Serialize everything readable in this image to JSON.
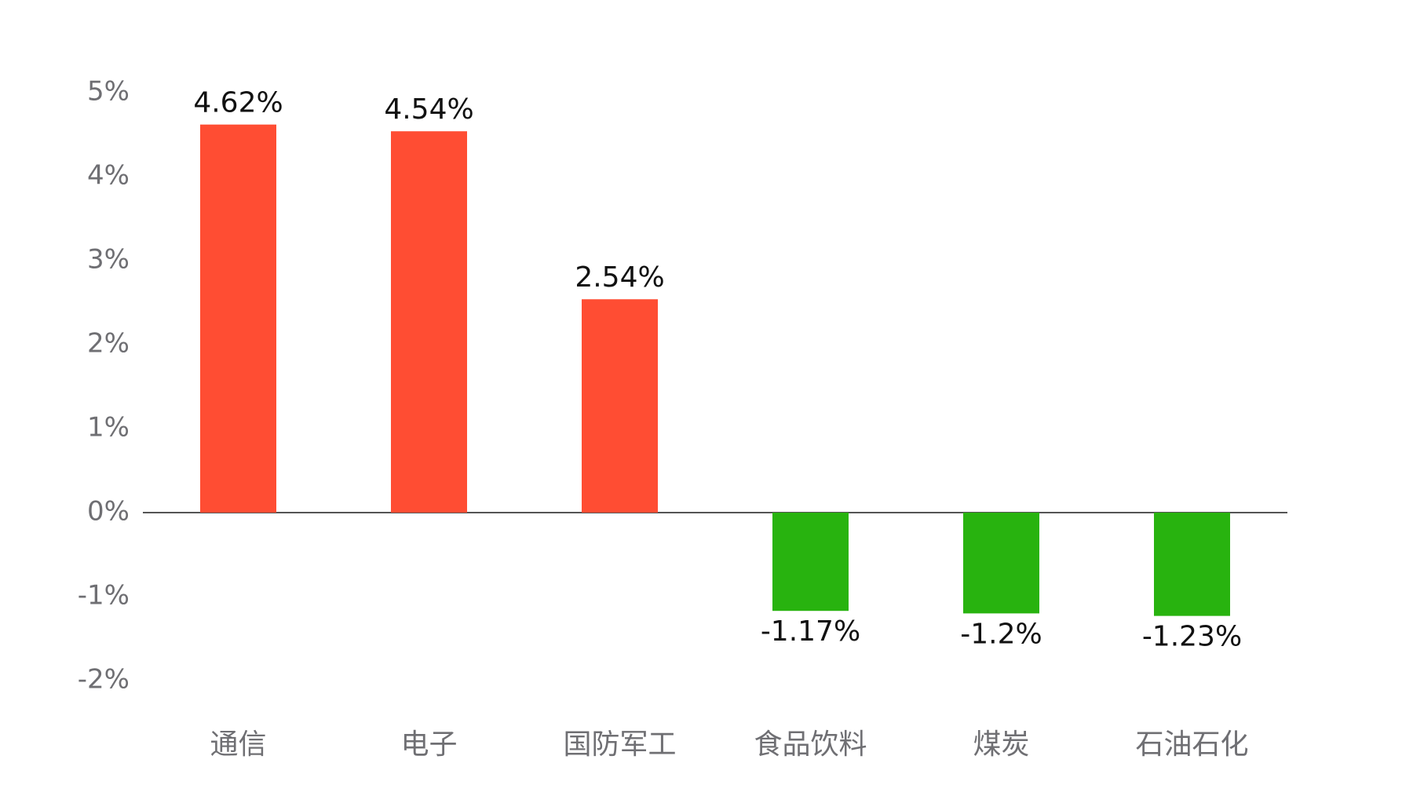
{
  "chart_data": {
    "type": "bar",
    "title": "",
    "xlabel": "",
    "ylabel": "",
    "categories": [
      "通信",
      "电子",
      "国防军工",
      "食品饮料",
      "煤炭",
      "石油石化"
    ],
    "values": [
      4.62,
      4.54,
      2.54,
      -1.17,
      -1.2,
      -1.23
    ],
    "data_labels": [
      "4.62%",
      "4.54%",
      "2.54%",
      "-1.17%",
      "-1.2%",
      "-1.23%"
    ],
    "ylim": [
      -2,
      5
    ],
    "yticks": [
      5,
      4,
      3,
      2,
      1,
      0,
      -1,
      -2
    ],
    "ytick_labels": [
      "5%",
      "4%",
      "3%",
      "2%",
      "1%",
      "0%",
      "-1%",
      "-2%"
    ],
    "grid": false,
    "legend": "none"
  },
  "colors": {
    "positive": "#ff4d33",
    "negative": "#28b30f",
    "zero_line": "#555555",
    "tick_text": "#6f6f73",
    "label_text": "#111111"
  }
}
